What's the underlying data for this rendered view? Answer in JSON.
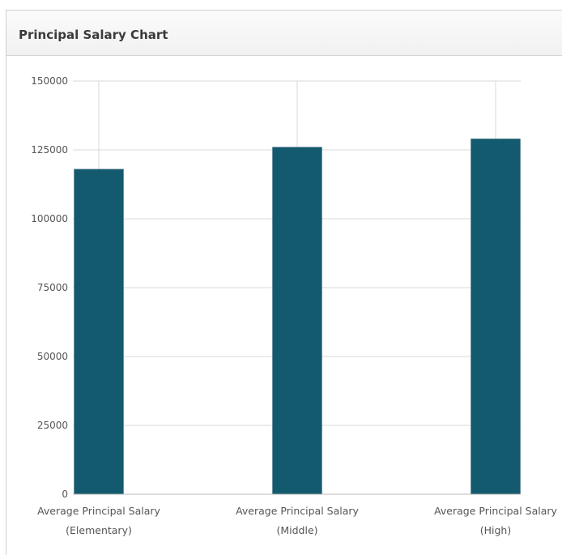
{
  "panel": {
    "title": "Principal Salary Chart"
  },
  "chart_data": {
    "type": "bar",
    "title": "",
    "xlabel": "",
    "ylabel": "",
    "categories": [
      [
        "Average Principal Salary",
        "(Elementary)"
      ],
      [
        "Average Principal Salary",
        "(Middle)"
      ],
      [
        "Average Principal Salary",
        "(High)"
      ]
    ],
    "values": [
      118000,
      126000,
      129000
    ],
    "ylim": [
      0,
      150000
    ],
    "yticks": [
      0,
      25000,
      50000,
      75000,
      100000,
      125000,
      150000
    ],
    "grid": true,
    "legend": "none",
    "colors": {
      "bar": "#145a6e",
      "grid": "#d9d9d9",
      "axis": "#bbbbbb"
    }
  }
}
